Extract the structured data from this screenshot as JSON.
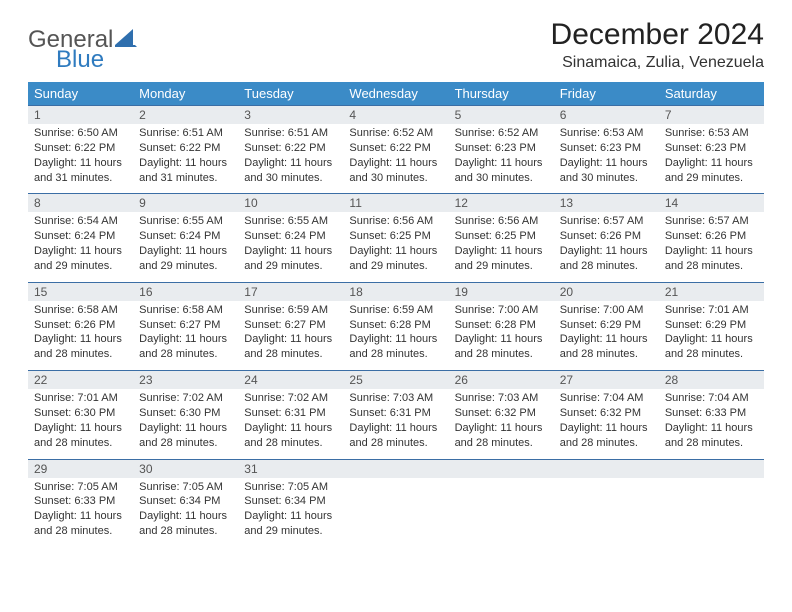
{
  "brand": {
    "word1": "General",
    "word2": "Blue",
    "word2_color": "#2f7bbf",
    "sail_color": "#2f6fae"
  },
  "title": "December 2024",
  "subtitle": "Sinamaica, Zulia, Venezuela",
  "colors": {
    "header_bg": "#3b8bc7",
    "header_fg": "#ffffff",
    "row_border": "#3b6ea5",
    "daynum_bg": "#e9ecef",
    "text": "#333333"
  },
  "typography": {
    "title_fontsize": 30,
    "subtitle_fontsize": 16,
    "dow_fontsize": 13,
    "daynum_fontsize": 12,
    "body_fontsize": 11
  },
  "days_of_week": [
    "Sunday",
    "Monday",
    "Tuesday",
    "Wednesday",
    "Thursday",
    "Friday",
    "Saturday"
  ],
  "labels": {
    "sunrise": "Sunrise:",
    "sunset": "Sunset:",
    "daylight_prefix": "Daylight:"
  },
  "weeks": [
    [
      {
        "n": "1",
        "sunrise": "6:50 AM",
        "sunset": "6:22 PM",
        "daylight": "11 hours and 31 minutes."
      },
      {
        "n": "2",
        "sunrise": "6:51 AM",
        "sunset": "6:22 PM",
        "daylight": "11 hours and 31 minutes."
      },
      {
        "n": "3",
        "sunrise": "6:51 AM",
        "sunset": "6:22 PM",
        "daylight": "11 hours and 30 minutes."
      },
      {
        "n": "4",
        "sunrise": "6:52 AM",
        "sunset": "6:22 PM",
        "daylight": "11 hours and 30 minutes."
      },
      {
        "n": "5",
        "sunrise": "6:52 AM",
        "sunset": "6:23 PM",
        "daylight": "11 hours and 30 minutes."
      },
      {
        "n": "6",
        "sunrise": "6:53 AM",
        "sunset": "6:23 PM",
        "daylight": "11 hours and 30 minutes."
      },
      {
        "n": "7",
        "sunrise": "6:53 AM",
        "sunset": "6:23 PM",
        "daylight": "11 hours and 29 minutes."
      }
    ],
    [
      {
        "n": "8",
        "sunrise": "6:54 AM",
        "sunset": "6:24 PM",
        "daylight": "11 hours and 29 minutes."
      },
      {
        "n": "9",
        "sunrise": "6:55 AM",
        "sunset": "6:24 PM",
        "daylight": "11 hours and 29 minutes."
      },
      {
        "n": "10",
        "sunrise": "6:55 AM",
        "sunset": "6:24 PM",
        "daylight": "11 hours and 29 minutes."
      },
      {
        "n": "11",
        "sunrise": "6:56 AM",
        "sunset": "6:25 PM",
        "daylight": "11 hours and 29 minutes."
      },
      {
        "n": "12",
        "sunrise": "6:56 AM",
        "sunset": "6:25 PM",
        "daylight": "11 hours and 29 minutes."
      },
      {
        "n": "13",
        "sunrise": "6:57 AM",
        "sunset": "6:26 PM",
        "daylight": "11 hours and 28 minutes."
      },
      {
        "n": "14",
        "sunrise": "6:57 AM",
        "sunset": "6:26 PM",
        "daylight": "11 hours and 28 minutes."
      }
    ],
    [
      {
        "n": "15",
        "sunrise": "6:58 AM",
        "sunset": "6:26 PM",
        "daylight": "11 hours and 28 minutes."
      },
      {
        "n": "16",
        "sunrise": "6:58 AM",
        "sunset": "6:27 PM",
        "daylight": "11 hours and 28 minutes."
      },
      {
        "n": "17",
        "sunrise": "6:59 AM",
        "sunset": "6:27 PM",
        "daylight": "11 hours and 28 minutes."
      },
      {
        "n": "18",
        "sunrise": "6:59 AM",
        "sunset": "6:28 PM",
        "daylight": "11 hours and 28 minutes."
      },
      {
        "n": "19",
        "sunrise": "7:00 AM",
        "sunset": "6:28 PM",
        "daylight": "11 hours and 28 minutes."
      },
      {
        "n": "20",
        "sunrise": "7:00 AM",
        "sunset": "6:29 PM",
        "daylight": "11 hours and 28 minutes."
      },
      {
        "n": "21",
        "sunrise": "7:01 AM",
        "sunset": "6:29 PM",
        "daylight": "11 hours and 28 minutes."
      }
    ],
    [
      {
        "n": "22",
        "sunrise": "7:01 AM",
        "sunset": "6:30 PM",
        "daylight": "11 hours and 28 minutes."
      },
      {
        "n": "23",
        "sunrise": "7:02 AM",
        "sunset": "6:30 PM",
        "daylight": "11 hours and 28 minutes."
      },
      {
        "n": "24",
        "sunrise": "7:02 AM",
        "sunset": "6:31 PM",
        "daylight": "11 hours and 28 minutes."
      },
      {
        "n": "25",
        "sunrise": "7:03 AM",
        "sunset": "6:31 PM",
        "daylight": "11 hours and 28 minutes."
      },
      {
        "n": "26",
        "sunrise": "7:03 AM",
        "sunset": "6:32 PM",
        "daylight": "11 hours and 28 minutes."
      },
      {
        "n": "27",
        "sunrise": "7:04 AM",
        "sunset": "6:32 PM",
        "daylight": "11 hours and 28 minutes."
      },
      {
        "n": "28",
        "sunrise": "7:04 AM",
        "sunset": "6:33 PM",
        "daylight": "11 hours and 28 minutes."
      }
    ],
    [
      {
        "n": "29",
        "sunrise": "7:05 AM",
        "sunset": "6:33 PM",
        "daylight": "11 hours and 28 minutes."
      },
      {
        "n": "30",
        "sunrise": "7:05 AM",
        "sunset": "6:34 PM",
        "daylight": "11 hours and 28 minutes."
      },
      {
        "n": "31",
        "sunrise": "7:05 AM",
        "sunset": "6:34 PM",
        "daylight": "11 hours and 29 minutes."
      },
      null,
      null,
      null,
      null
    ]
  ]
}
